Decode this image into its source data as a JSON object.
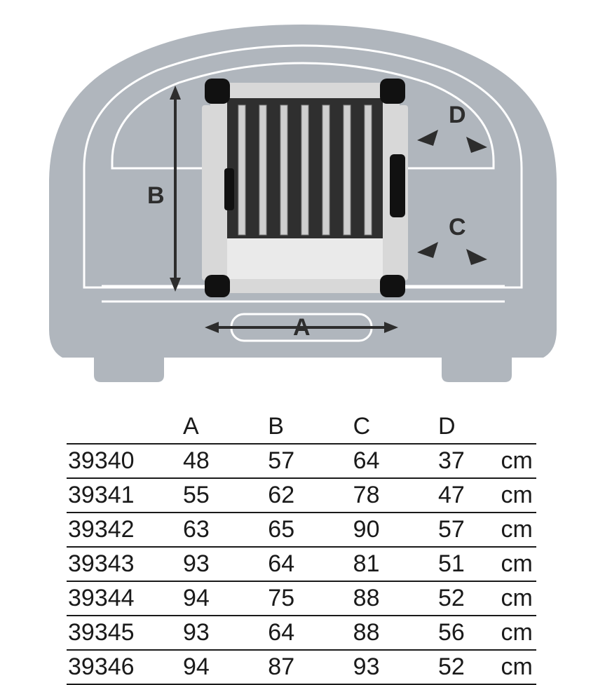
{
  "diagram": {
    "type": "infographic",
    "background": "#ffffff",
    "car_color": "#b0b6bd",
    "outline_color": "#ffffff",
    "outline_width": 3,
    "arrow_color": "#2d2d2d",
    "label_font": "bold 34px Arial",
    "labels": {
      "A": "A",
      "B": "B",
      "C": "C",
      "D": "D"
    },
    "crate": {
      "front_panel": "#2f2f2f",
      "corner_color": "#111111",
      "frame_color": "#d8d8d8",
      "bar_color": "#cfcfcf",
      "tray_color": "#eaeaea"
    }
  },
  "table": {
    "columns": [
      "",
      "A",
      "B",
      "C",
      "D",
      ""
    ],
    "unit": "cm",
    "rows": [
      {
        "id": "39340",
        "A": "48",
        "B": "57",
        "C": "64",
        "D": "37"
      },
      {
        "id": "39341",
        "A": "55",
        "B": "62",
        "C": "78",
        "D": "47"
      },
      {
        "id": "39342",
        "A": "63",
        "B": "65",
        "C": "90",
        "D": "57"
      },
      {
        "id": "39343",
        "A": "93",
        "B": "64",
        "C": "81",
        "D": "51"
      },
      {
        "id": "39344",
        "A": "94",
        "B": "75",
        "C": "88",
        "D": "52"
      },
      {
        "id": "39345",
        "A": "93",
        "B": "64",
        "C": "88",
        "D": "56"
      },
      {
        "id": "39346",
        "A": "94",
        "B": "87",
        "C": "93",
        "D": "52"
      }
    ],
    "border_color": "#1a1a1a",
    "font_size": 34,
    "text_color": "#1a1a1a"
  }
}
